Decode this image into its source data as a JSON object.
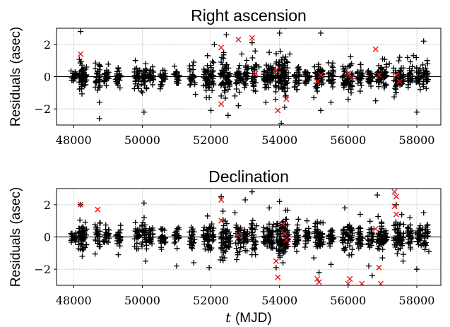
{
  "chart_data": [
    {
      "type": "scatter",
      "title": "Right ascension",
      "ylabel": "Residuals (asec)",
      "xlabel": "",
      "xlim": [
        47500,
        58700
      ],
      "ylim": [
        -3,
        3
      ],
      "xticks": [
        48000,
        50000,
        52000,
        54000,
        56000,
        58000
      ],
      "yticks": [
        -2,
        0,
        2
      ],
      "xtick_labels": [
        "48000",
        "50000",
        "52000",
        "54000",
        "56000",
        "58000"
      ],
      "ytick_labels": [
        "−2",
        "0",
        "2"
      ],
      "grid": "dotted",
      "zero_line": true,
      "series": [
        {
          "marker": "plus",
          "color": "#000000",
          "points": [
            [
              48000,
              -0.1
            ],
            [
              48200,
              2.8
            ],
            [
              48250,
              -0.3
            ],
            [
              48300,
              0.4
            ],
            [
              48350,
              -0.5
            ],
            [
              48650,
              -0.4
            ],
            [
              48700,
              0.3
            ],
            [
              48750,
              -1.6
            ],
            [
              48750,
              -2.6
            ],
            [
              48900,
              0.2
            ],
            [
              49300,
              0.5
            ],
            [
              49350,
              -0.7
            ],
            [
              49800,
              1.0
            ],
            [
              49900,
              -0.2
            ],
            [
              50000,
              -1.0
            ],
            [
              50050,
              -2.2
            ],
            [
              50100,
              0.8
            ],
            [
              50300,
              -0.5
            ],
            [
              50600,
              0.4
            ],
            [
              51000,
              -0.4
            ],
            [
              51500,
              0.9
            ],
            [
              51550,
              -1.1
            ],
            [
              51900,
              1.3
            ],
            [
              51950,
              -1.3
            ],
            [
              52000,
              -2.1
            ],
            [
              52100,
              2.0
            ],
            [
              52300,
              0.9
            ],
            [
              52300,
              -1.2
            ],
            [
              52400,
              0.4
            ],
            [
              52450,
              2.6
            ],
            [
              52500,
              -0.8
            ],
            [
              52500,
              -2.4
            ],
            [
              52700,
              -1.2
            ],
            [
              52800,
              -1.8
            ],
            [
              52900,
              1.4
            ],
            [
              53000,
              0.2
            ],
            [
              53200,
              2.1
            ],
            [
              53300,
              -0.9
            ],
            [
              53400,
              0.6
            ],
            [
              53600,
              -1.6
            ],
            [
              53700,
              1.5
            ],
            [
              53900,
              -0.6
            ],
            [
              54000,
              0.9
            ],
            [
              54000,
              2.7
            ],
            [
              54050,
              -2.9
            ],
            [
              54100,
              1.2
            ],
            [
              54150,
              -1.9
            ],
            [
              54300,
              1.4
            ],
            [
              54500,
              -0.8
            ],
            [
              54800,
              0.2
            ],
            [
              55000,
              -1.3
            ],
            [
              55100,
              -0.9
            ],
            [
              55200,
              2.7
            ],
            [
              55200,
              -2.1
            ],
            [
              55450,
              -0.2
            ],
            [
              55500,
              -1.6
            ],
            [
              55900,
              0.3
            ],
            [
              56000,
              -1.4
            ],
            [
              56100,
              0.8
            ],
            [
              56350,
              -0.9
            ],
            [
              56650,
              0.2
            ],
            [
              56800,
              -1.5
            ],
            [
              57000,
              1.1
            ],
            [
              57050,
              -0.7
            ],
            [
              57200,
              0.8
            ],
            [
              57400,
              -1.0
            ],
            [
              57500,
              1.2
            ],
            [
              57750,
              -0.5
            ],
            [
              57900,
              1.3
            ],
            [
              58000,
              -2.2
            ],
            [
              58100,
              -0.8
            ],
            [
              58200,
              2.2
            ],
            [
              58300,
              1.0
            ]
          ]
        },
        {
          "marker": "x",
          "color": "#e8191c",
          "points": [
            [
              48200,
              1.4
            ],
            [
              52300,
              1.8
            ],
            [
              52300,
              -1.7
            ],
            [
              52800,
              2.3
            ],
            [
              53200,
              2.4
            ],
            [
              53300,
              0.2
            ],
            [
              53900,
              0.4
            ],
            [
              53950,
              -2.1
            ],
            [
              54100,
              3.1
            ],
            [
              54200,
              -1.4
            ],
            [
              55100,
              -0.3
            ],
            [
              55200,
              0.1
            ],
            [
              56000,
              0.2
            ],
            [
              56100,
              -0.1
            ],
            [
              56800,
              1.7
            ],
            [
              56900,
              0.1
            ],
            [
              57400,
              0.1
            ],
            [
              57500,
              -0.3
            ]
          ]
        }
      ],
      "clusters": [
        {
          "x": 48000,
          "s": 0.15
        },
        {
          "x": 48220,
          "s": 0.5
        },
        {
          "x": 48300,
          "s": 0.35
        },
        {
          "x": 48700,
          "s": 0.4
        },
        {
          "x": 48950,
          "s": 0.3
        },
        {
          "x": 49300,
          "s": 0.3
        },
        {
          "x": 49850,
          "s": 0.35
        },
        {
          "x": 50050,
          "s": 0.45
        },
        {
          "x": 50250,
          "s": 0.3
        },
        {
          "x": 50600,
          "s": 0.3
        },
        {
          "x": 51000,
          "s": 0.3
        },
        {
          "x": 51450,
          "s": 0.35
        },
        {
          "x": 51850,
          "s": 0.4
        },
        {
          "x": 52000,
          "s": 0.45
        },
        {
          "x": 52350,
          "s": 0.6
        },
        {
          "x": 52500,
          "s": 0.4
        },
        {
          "x": 52800,
          "s": 0.5
        },
        {
          "x": 53000,
          "s": 0.35
        },
        {
          "x": 53250,
          "s": 0.45
        },
        {
          "x": 53600,
          "s": 0.35
        },
        {
          "x": 53750,
          "s": 0.4
        },
        {
          "x": 53950,
          "s": 0.55
        },
        {
          "x": 54100,
          "s": 0.65
        },
        {
          "x": 54200,
          "s": 0.5
        },
        {
          "x": 54500,
          "s": 0.35
        },
        {
          "x": 54800,
          "s": 0.3
        },
        {
          "x": 55100,
          "s": 0.4
        },
        {
          "x": 55200,
          "s": 0.35
        },
        {
          "x": 55500,
          "s": 0.3
        },
        {
          "x": 55900,
          "s": 0.35
        },
        {
          "x": 56050,
          "s": 0.4
        },
        {
          "x": 56350,
          "s": 0.35
        },
        {
          "x": 56650,
          "s": 0.3
        },
        {
          "x": 56900,
          "s": 0.4
        },
        {
          "x": 57050,
          "s": 0.35
        },
        {
          "x": 57400,
          "s": 0.45
        },
        {
          "x": 57550,
          "s": 0.35
        },
        {
          "x": 57800,
          "s": 0.35
        },
        {
          "x": 58050,
          "s": 0.35
        },
        {
          "x": 58250,
          "s": 0.4
        }
      ]
    },
    {
      "type": "scatter",
      "title": "Declination",
      "ylabel": "Residuals (asec)",
      "xlabel": "(MJD)",
      "xlabel_var": "t",
      "xlim": [
        47500,
        58700
      ],
      "ylim": [
        -3,
        3
      ],
      "xticks": [
        48000,
        50000,
        52000,
        54000,
        56000,
        58000
      ],
      "yticks": [
        -2,
        0,
        2
      ],
      "xtick_labels": [
        "48000",
        "50000",
        "52000",
        "54000",
        "56000",
        "58000"
      ],
      "ytick_labels": [
        "−2",
        "0",
        "2"
      ],
      "grid": "dotted",
      "zero_line": true,
      "series": [
        {
          "marker": "plus",
          "color": "#000000",
          "points": [
            [
              48200,
              2.0
            ],
            [
              48250,
              -1.2
            ],
            [
              48700,
              -0.4
            ],
            [
              48700,
              0.6
            ],
            [
              49300,
              -1.1
            ],
            [
              49800,
              0.9
            ],
            [
              50050,
              2.1
            ],
            [
              50100,
              -1.5
            ],
            [
              50600,
              0.5
            ],
            [
              51000,
              -1.8
            ],
            [
              51500,
              -1.6
            ],
            [
              51900,
              1.3
            ],
            [
              51950,
              -1.9
            ],
            [
              52300,
              2.5
            ],
            [
              52350,
              1.6
            ],
            [
              52400,
              -1.3
            ],
            [
              52700,
              1.5
            ],
            [
              52750,
              -1.4
            ],
            [
              53000,
              2.3
            ],
            [
              53200,
              2.8
            ],
            [
              53300,
              -1.1
            ],
            [
              53700,
              1.8
            ],
            [
              53900,
              -1.9
            ],
            [
              54000,
              2.2
            ],
            [
              54100,
              -1.6
            ],
            [
              54200,
              1.1
            ],
            [
              54500,
              -0.9
            ],
            [
              54800,
              1.0
            ],
            [
              55000,
              -1.3
            ],
            [
              55200,
              0.9
            ],
            [
              55500,
              -1.7
            ],
            [
              55900,
              1.8
            ],
            [
              56100,
              -1.1
            ],
            [
              56350,
              1.4
            ],
            [
              56600,
              -1.8
            ],
            [
              56850,
              2.6
            ],
            [
              57000,
              -1.3
            ],
            [
              57400,
              2.0
            ],
            [
              57600,
              -1.5
            ],
            [
              57800,
              1.2
            ],
            [
              58000,
              -2.0
            ],
            [
              58200,
              1.5
            ],
            [
              58350,
              -0.9
            ],
            [
              56700,
              -2.4
            ],
            [
              55150,
              -2.2
            ]
          ]
        },
        {
          "marker": "x",
          "color": "#e8191c",
          "points": [
            [
              48200,
              2.0
            ],
            [
              48700,
              1.7
            ],
            [
              52300,
              2.3
            ],
            [
              52300,
              1.0
            ],
            [
              52800,
              0.1
            ],
            [
              53900,
              -1.5
            ],
            [
              53950,
              -2.5
            ],
            [
              54100,
              0.8
            ],
            [
              54150,
              0.2
            ],
            [
              54200,
              -0.2
            ],
            [
              55100,
              -2.6
            ],
            [
              55150,
              -2.8
            ],
            [
              56000,
              -2.9
            ],
            [
              56050,
              -2.6
            ],
            [
              56400,
              -2.9
            ],
            [
              56800,
              0.5
            ],
            [
              56900,
              -1.9
            ],
            [
              56950,
              -2.9
            ],
            [
              57350,
              2.8
            ],
            [
              57400,
              2.5
            ],
            [
              57350,
              1.9
            ],
            [
              57400,
              1.4
            ]
          ]
        }
      ],
      "clusters": [
        {
          "x": 48000,
          "s": 0.15
        },
        {
          "x": 48220,
          "s": 0.5
        },
        {
          "x": 48300,
          "s": 0.35
        },
        {
          "x": 48700,
          "s": 0.4
        },
        {
          "x": 48950,
          "s": 0.3
        },
        {
          "x": 49300,
          "s": 0.3
        },
        {
          "x": 49850,
          "s": 0.35
        },
        {
          "x": 50050,
          "s": 0.5
        },
        {
          "x": 50250,
          "s": 0.3
        },
        {
          "x": 50600,
          "s": 0.35
        },
        {
          "x": 51000,
          "s": 0.3
        },
        {
          "x": 51450,
          "s": 0.35
        },
        {
          "x": 51850,
          "s": 0.4
        },
        {
          "x": 52000,
          "s": 0.45
        },
        {
          "x": 52350,
          "s": 0.6
        },
        {
          "x": 52500,
          "s": 0.45
        },
        {
          "x": 52800,
          "s": 0.5
        },
        {
          "x": 53000,
          "s": 0.35
        },
        {
          "x": 53250,
          "s": 0.5
        },
        {
          "x": 53600,
          "s": 0.35
        },
        {
          "x": 53750,
          "s": 0.45
        },
        {
          "x": 53950,
          "s": 0.55
        },
        {
          "x": 54100,
          "s": 0.65
        },
        {
          "x": 54200,
          "s": 0.5
        },
        {
          "x": 54500,
          "s": 0.35
        },
        {
          "x": 54800,
          "s": 0.3
        },
        {
          "x": 55100,
          "s": 0.45
        },
        {
          "x": 55200,
          "s": 0.35
        },
        {
          "x": 55500,
          "s": 0.3
        },
        {
          "x": 55900,
          "s": 0.35
        },
        {
          "x": 56050,
          "s": 0.45
        },
        {
          "x": 56350,
          "s": 0.35
        },
        {
          "x": 56650,
          "s": 0.3
        },
        {
          "x": 56900,
          "s": 0.45
        },
        {
          "x": 57050,
          "s": 0.35
        },
        {
          "x": 57400,
          "s": 0.5
        },
        {
          "x": 57550,
          "s": 0.4
        },
        {
          "x": 57800,
          "s": 0.35
        },
        {
          "x": 58050,
          "s": 0.35
        },
        {
          "x": 58250,
          "s": 0.45
        }
      ]
    }
  ]
}
